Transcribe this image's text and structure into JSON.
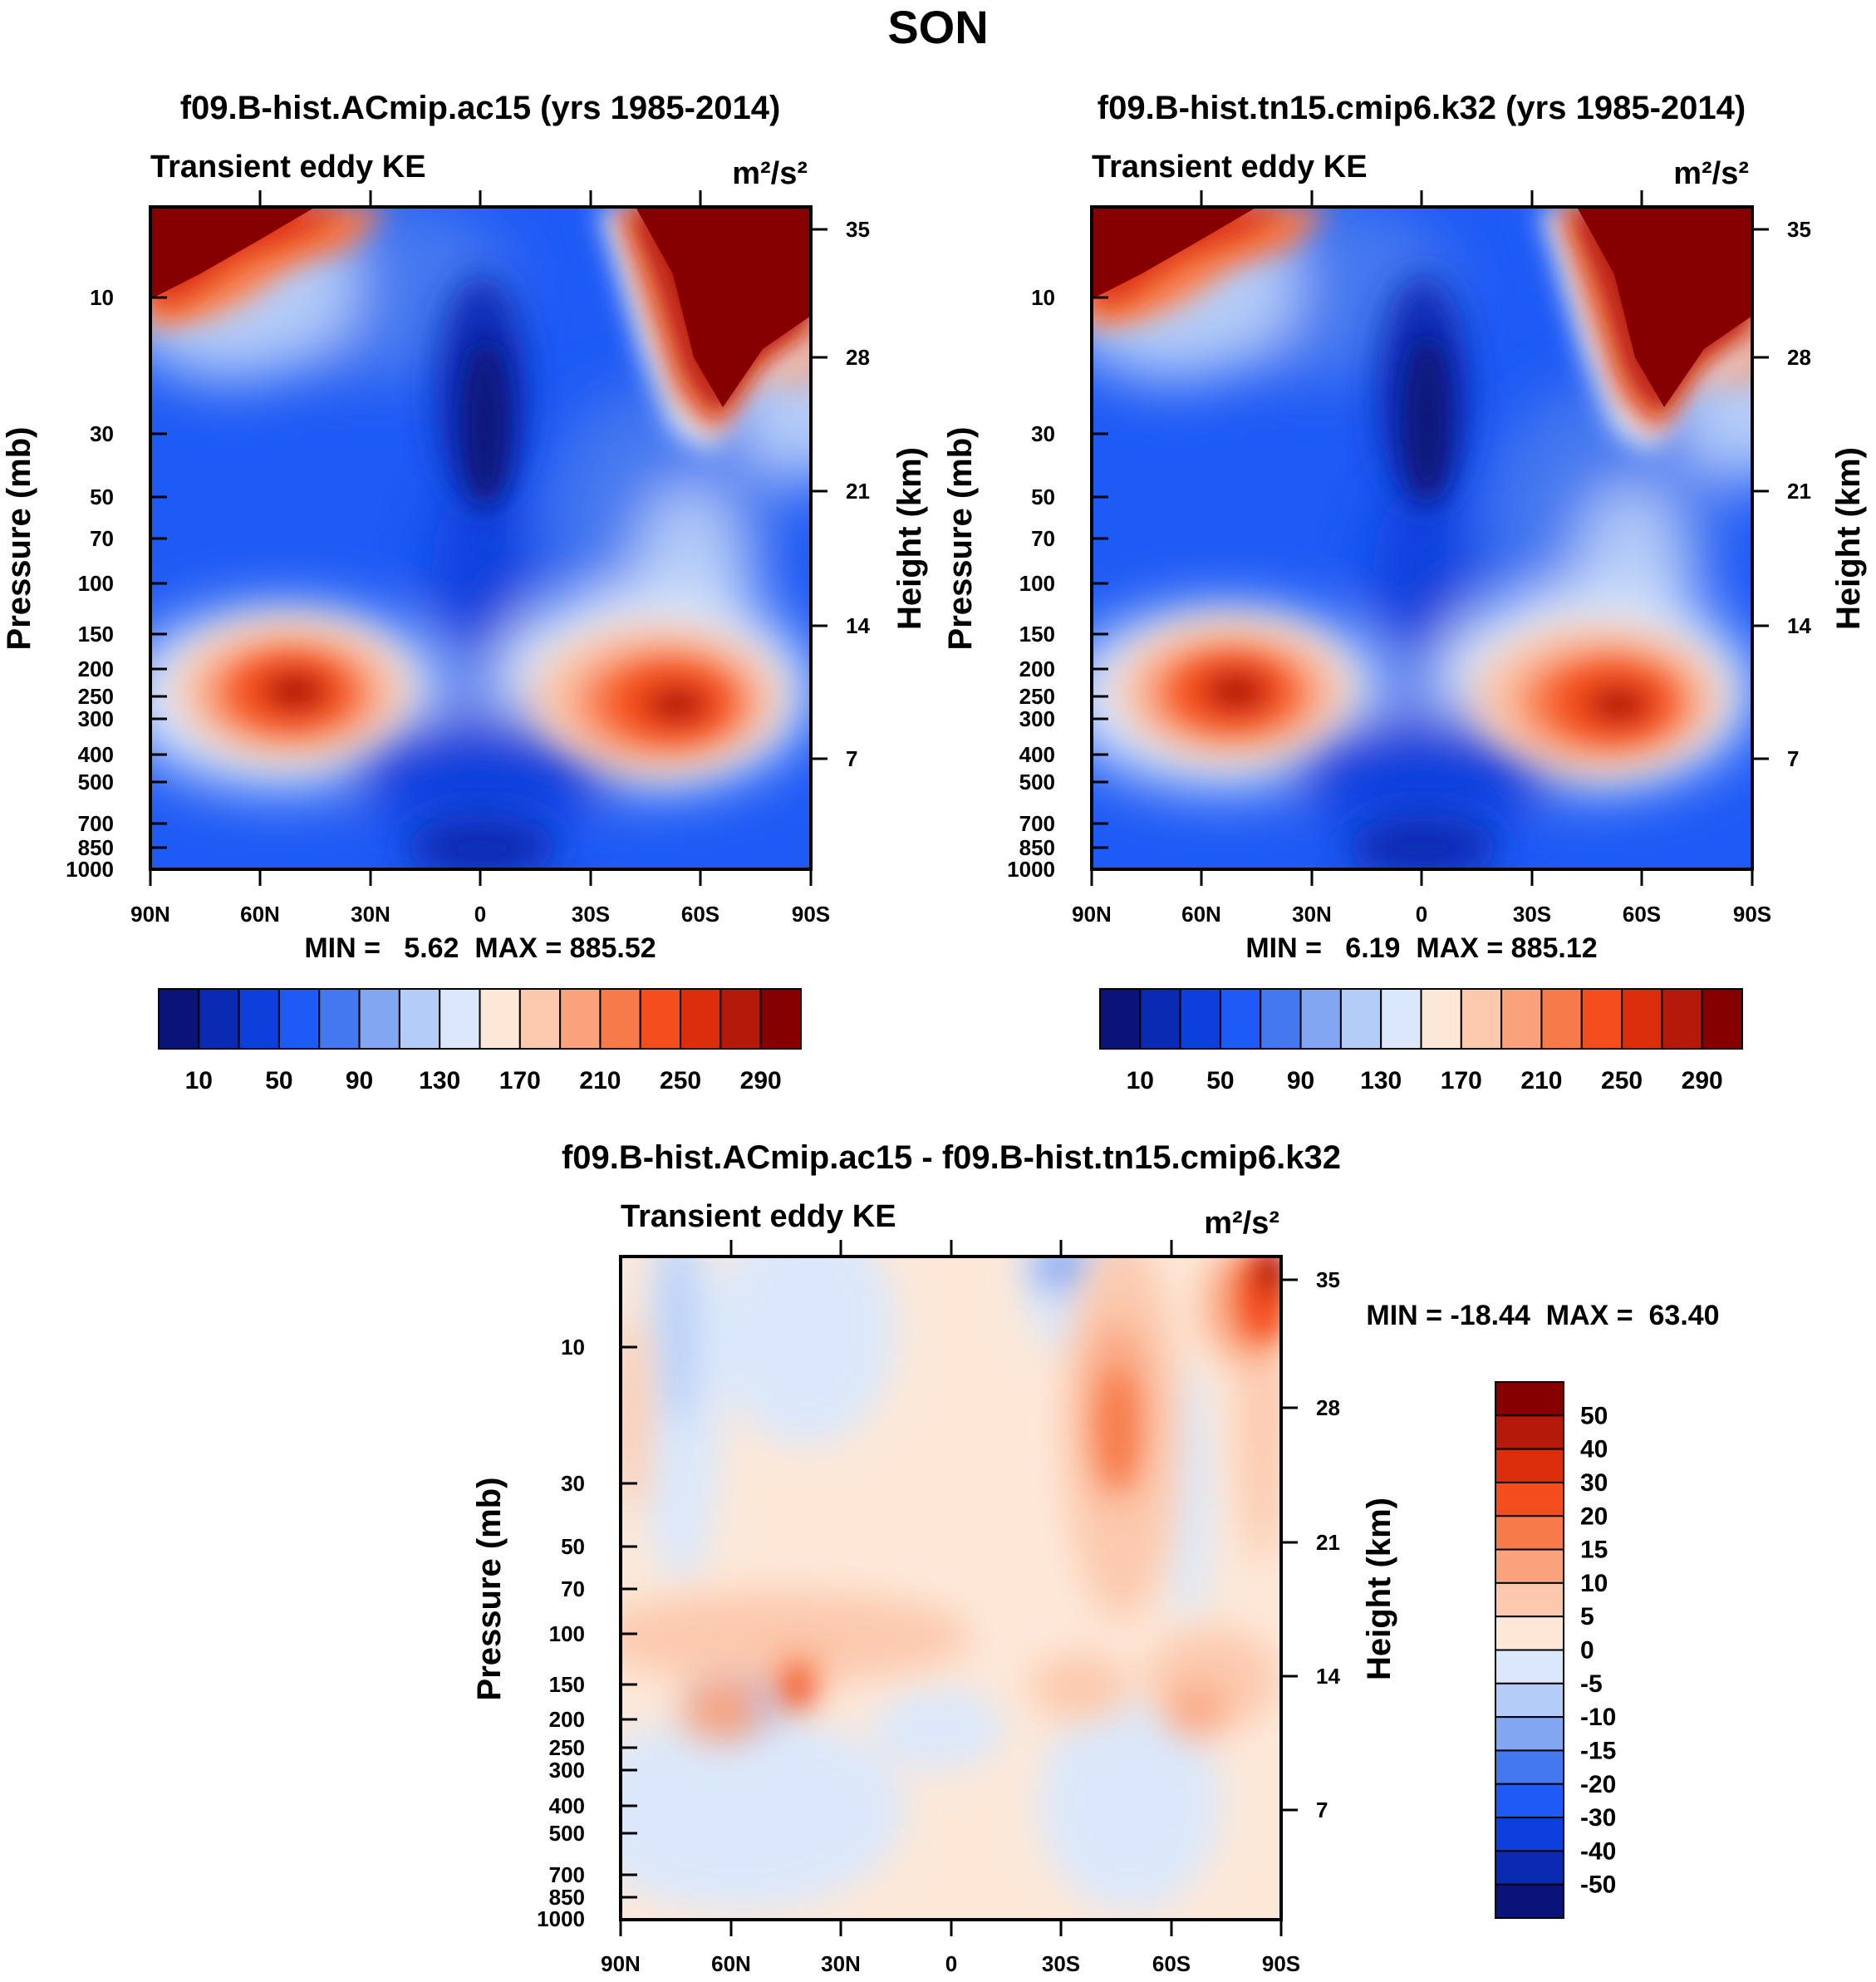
{
  "figure_title": "SON",
  "panels": [
    {
      "title": "f09.B-hist.ACmip.ac15 (yrs 1985-2014)",
      "variable": "Transient eddy KE",
      "units": "m²/s²",
      "stats": "MIN =   5.62  MAX = 885.52"
    },
    {
      "title": "f09.B-hist.tn15.cmip6.k32 (yrs 1985-2014)",
      "variable": "Transient eddy KE",
      "units": "m²/s²",
      "stats": "MIN =   6.19  MAX = 885.12"
    },
    {
      "title": "f09.B-hist.ACmip.ac15 - f09.B-hist.tn15.cmip6.k32",
      "variable": "Transient eddy KE",
      "units": "m²/s²",
      "stats": "MIN = -18.44  MAX =  63.40"
    }
  ],
  "chart_data": [
    {
      "type": "heatmap",
      "title": "f09.B-hist.ACmip.ac15 (yrs 1985-2014)",
      "subtitle": "Transient eddy KE",
      "units": "m²/s²",
      "xlabel": "",
      "ylabel": "Pressure (mb)",
      "ylabel_right": "Height (km)",
      "x_ticks": [
        "90N",
        "60N",
        "30N",
        "0",
        "30S",
        "60S",
        "90S"
      ],
      "y_ticks": [
        10,
        30,
        50,
        70,
        100,
        150,
        200,
        250,
        300,
        400,
        500,
        700,
        850,
        1000
      ],
      "y_right_ticks": [
        35,
        28,
        21,
        14,
        7
      ],
      "colorbar_labels": [
        10,
        50,
        90,
        130,
        170,
        210,
        250,
        290
      ],
      "min": 5.62,
      "max": 885.52
    },
    {
      "type": "heatmap",
      "title": "f09.B-hist.tn15.cmip6.k32 (yrs 1985-2014)",
      "subtitle": "Transient eddy KE",
      "units": "m²/s²",
      "xlabel": "",
      "ylabel": "Pressure (mb)",
      "ylabel_right": "Height (km)",
      "x_ticks": [
        "90N",
        "60N",
        "30N",
        "0",
        "30S",
        "60S",
        "90S"
      ],
      "y_ticks": [
        10,
        30,
        50,
        70,
        100,
        150,
        200,
        250,
        300,
        400,
        500,
        700,
        850,
        1000
      ],
      "y_right_ticks": [
        35,
        28,
        21,
        14,
        7
      ],
      "colorbar_labels": [
        10,
        50,
        90,
        130,
        170,
        210,
        250,
        290
      ],
      "min": 6.19,
      "max": 885.12
    },
    {
      "type": "heatmap",
      "title": "f09.B-hist.ACmip.ac15 - f09.B-hist.tn15.cmip6.k32",
      "subtitle": "Transient eddy KE",
      "units": "m²/s²",
      "xlabel": "",
      "ylabel": "Pressure (mb)",
      "ylabel_right": "Height (km)",
      "x_ticks": [
        "90N",
        "60N",
        "30N",
        "0",
        "30S",
        "60S",
        "90S"
      ],
      "y_ticks": [
        10,
        30,
        50,
        70,
        100,
        150,
        200,
        250,
        300,
        400,
        500,
        700,
        850,
        1000
      ],
      "y_right_ticks": [
        35,
        28,
        21,
        14,
        7
      ],
      "colorbar_labels": [
        50,
        40,
        30,
        20,
        15,
        10,
        5,
        0,
        -5,
        -10,
        -15,
        -20,
        -30,
        -40,
        -50
      ],
      "min": -18.44,
      "max": 63.4
    }
  ],
  "colors": {
    "seq": [
      "#0a1478",
      "#0a2ab4",
      "#0d3fdc",
      "#1e5af5",
      "#4478f0",
      "#82a6f2",
      "#b4ccf8",
      "#dbe8fb",
      "#fde8d8",
      "#fcc9ad",
      "#f9a27c",
      "#f77a4a",
      "#f44d1e",
      "#dc2e0c",
      "#b4190a",
      "#870000"
    ],
    "div": [
      "#870000",
      "#b4190a",
      "#dc2e0c",
      "#f44d1e",
      "#f77a4a",
      "#f9a27c",
      "#fcc9ad",
      "#fde8d8",
      "#dbe8fb",
      "#b4ccf8",
      "#82a6f2",
      "#4478f0",
      "#1e5af5",
      "#0d3fdc",
      "#0a2ab4",
      "#0a1478"
    ]
  }
}
